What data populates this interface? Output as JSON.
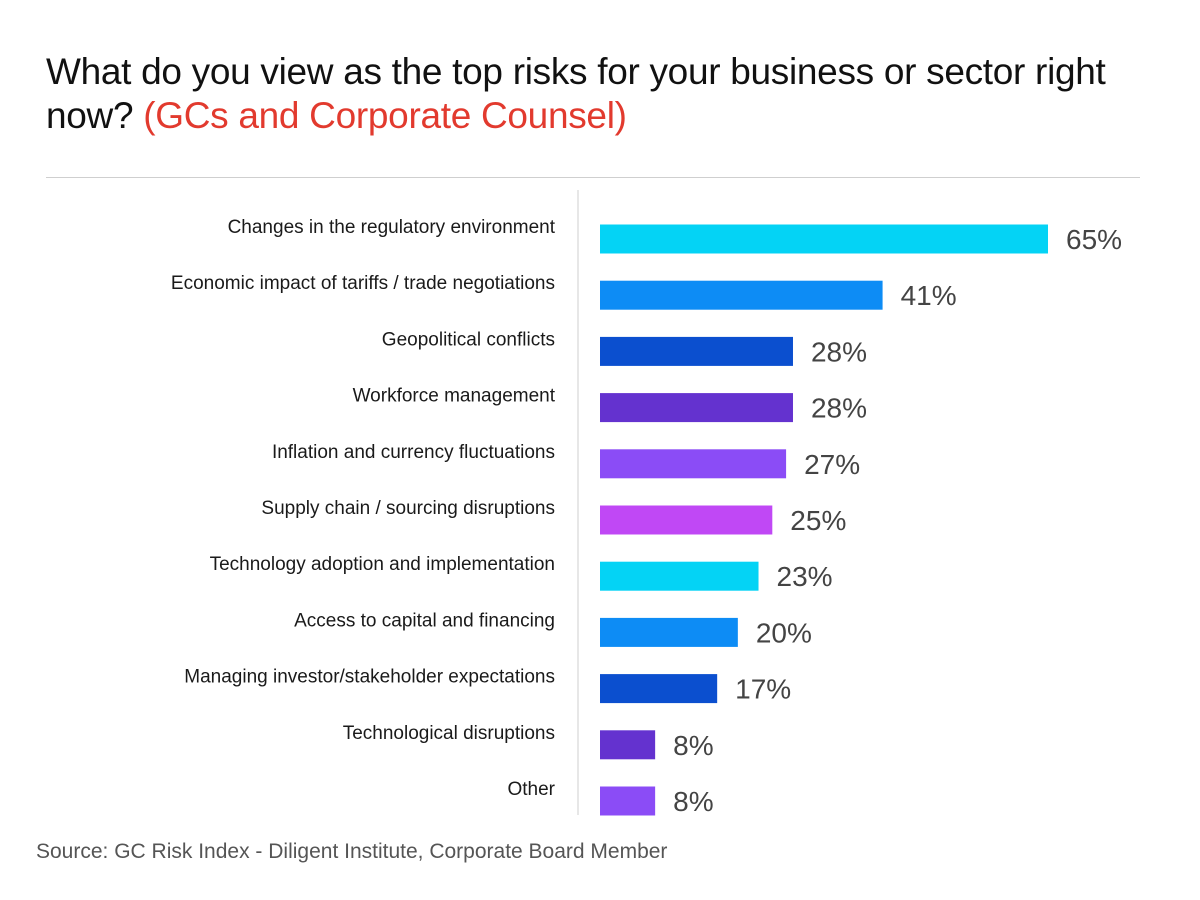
{
  "title": {
    "main": "What do you view as the top risks for your business or sector right now?",
    "highlight": "(GCs and Corporate Counsel)"
  },
  "source": "Source: GC Risk Index - Diligent Institute, Corporate Board Member",
  "colors": {
    "title_highlight": "#e23a2e",
    "text": "#1a1a1a",
    "value_text": "#444444",
    "axis_line": "#cfcfcf"
  },
  "chart_data": {
    "type": "bar",
    "orientation": "horizontal",
    "categories": [
      "Changes in the regulatory environment",
      "Economic impact of tariffs / trade negotiations",
      "Geopolitical conflicts",
      "Workforce management",
      "Inflation and currency fluctuations",
      "Supply chain / sourcing disruptions",
      "Technology adoption and implementation",
      "Access to capital and financing",
      "Managing investor/stakeholder expectations",
      "Technological disruptions",
      "Other"
    ],
    "values": [
      65,
      41,
      28,
      28,
      27,
      25,
      23,
      20,
      17,
      8,
      8
    ],
    "value_labels": [
      "65%",
      "41%",
      "28%",
      "28%",
      "27%",
      "25%",
      "23%",
      "20%",
      "17%",
      "8%",
      "8%"
    ],
    "bar_colors": [
      "#04d3f5",
      "#0d8cf5",
      "#0b4fcf",
      "#6432cf",
      "#8b4cf6",
      "#c048f5",
      "#04d3f5",
      "#0d8cf5",
      "#0b4fcf",
      "#6432cf",
      "#8b4cf6"
    ],
    "unit": "%",
    "xlim": [
      0,
      65
    ],
    "grid": false,
    "legend": "none"
  }
}
